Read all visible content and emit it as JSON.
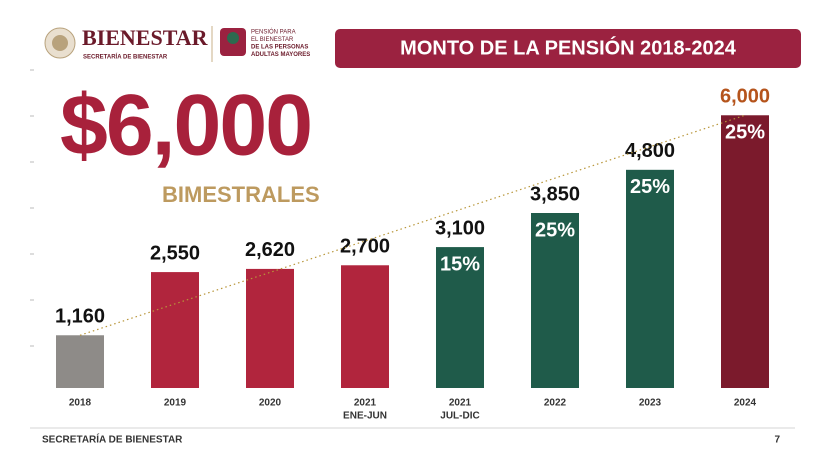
{
  "header": {
    "brand": "BIENESTAR",
    "brand_sub": "SECRETARÍA DE BIENESTAR",
    "program_lines": [
      "PENSIÓN PARA",
      "EL BIENESTAR",
      "DE LAS PERSONAS",
      "ADULTAS MAYORES"
    ]
  },
  "footer": {
    "left": "SECRETARÍA DE BIENESTAR",
    "page": "7"
  },
  "chart_data": {
    "type": "bar",
    "title": "MONTO DE LA PENSIÓN 2018-2024",
    "headline": "$6,000",
    "headline_sub": "BIMESTRALES",
    "categories": [
      "2018",
      "2019",
      "2020",
      "2021",
      "2021",
      "2022",
      "2023",
      "2024"
    ],
    "category_sublabels": [
      null,
      null,
      null,
      "ENE-JUN",
      "JUL-DIC",
      null,
      null,
      null
    ],
    "values": [
      1160,
      2550,
      2620,
      2700,
      3100,
      3850,
      4800,
      6000
    ],
    "value_labels": [
      "1,160",
      "2,550",
      "2,620",
      "2,700",
      "3,100",
      "3,850",
      "4,800",
      "6,000"
    ],
    "colors": [
      "#8e8b88",
      "#b1253d",
      "#b1253d",
      "#b1253d",
      "#1f5b4a",
      "#1f5b4a",
      "#1f5b4a",
      "#7b1a2c"
    ],
    "increases": {
      "values": [
        null,
        null,
        null,
        null,
        15,
        25,
        25,
        25
      ],
      "value_labels": [
        null,
        null,
        null,
        null,
        "15%",
        "25%",
        "25%",
        "25%"
      ]
    },
    "ylim": [
      0,
      6600
    ],
    "trend_line": true
  }
}
